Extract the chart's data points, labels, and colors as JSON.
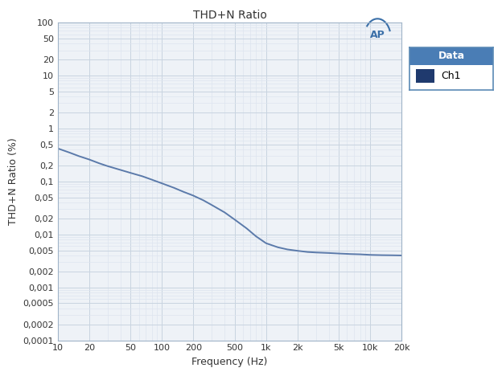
{
  "title": "THD+N Ratio",
  "xlabel": "Frequency (Hz)",
  "ylabel": "THD+N Ratio (%)",
  "line_color": "#5b7aaa",
  "line_width": 1.4,
  "bg_color": "#ffffff",
  "plot_bg_color": "#eef2f7",
  "grid_color_major": "#c8d4e0",
  "grid_color_minor": "#dde5ef",
  "legend_title": "Data",
  "legend_label": "Ch1",
  "legend_square_color": "#1f3a6e",
  "legend_header_bg": "#4a7db5",
  "legend_header_text": "#ffffff",
  "x_ticks": [
    10,
    20,
    50,
    100,
    200,
    500,
    1000,
    2000,
    5000,
    10000,
    20000
  ],
  "x_tick_labels": [
    "10",
    "20",
    "50",
    "100",
    "200",
    "500",
    "1k",
    "2k",
    "5k",
    "10k",
    "20k"
  ],
  "y_ticks": [
    100,
    50,
    20,
    10,
    5,
    2,
    1,
    0.5,
    0.2,
    0.1,
    0.05,
    0.02,
    0.01,
    0.005,
    0.002,
    0.001,
    0.0005,
    0.0002,
    0.0001
  ],
  "y_tick_labels": [
    "100",
    "50",
    "20",
    "10",
    "5",
    "2",
    "1",
    "0,5",
    "0,2",
    "0,1",
    "0,05",
    "0,02",
    "0,01",
    "0,005",
    "0,002",
    "0,001",
    "0,0005",
    "0,0002",
    "0,0001"
  ],
  "xlim": [
    10,
    20000
  ],
  "ylim": [
    0.0001,
    100
  ],
  "data_x": [
    10,
    13,
    16,
    20,
    25,
    30,
    40,
    50,
    65,
    80,
    100,
    130,
    160,
    200,
    250,
    300,
    400,
    500,
    650,
    800,
    1000,
    1300,
    1600,
    2000,
    2500,
    3000,
    4000,
    5000,
    6500,
    8000,
    10000,
    13000,
    16000,
    20000
  ],
  "data_y": [
    0.42,
    0.35,
    0.3,
    0.26,
    0.22,
    0.195,
    0.165,
    0.145,
    0.125,
    0.108,
    0.092,
    0.076,
    0.064,
    0.054,
    0.044,
    0.036,
    0.026,
    0.019,
    0.013,
    0.0092,
    0.0068,
    0.0057,
    0.0052,
    0.0049,
    0.00465,
    0.00455,
    0.00445,
    0.00435,
    0.00425,
    0.0042,
    0.0041,
    0.00405,
    0.00403,
    0.004
  ],
  "spine_color": "#a0b4c8",
  "tick_label_color": "#333333",
  "title_color": "#333333",
  "ap_color": "#3a6fa8"
}
